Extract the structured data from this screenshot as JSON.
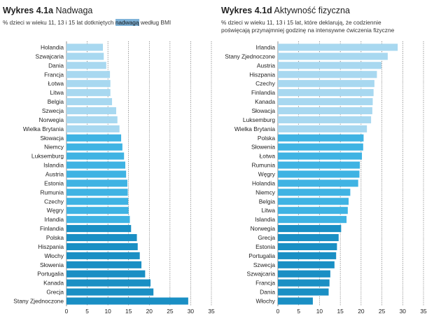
{
  "charts": {
    "left": {
      "title_number": "Wykres 4.1a",
      "title_name": "Nadwaga",
      "subtitle_before": "% dzieci w wieku 11, 13 i 15 lat dotkniętych",
      "subtitle_highlight": "nadwagą",
      "subtitle_after": "według BMI"
    },
    "right": {
      "title_number": "Wykres 4.1d",
      "title_name": "Aktywność fizyczna",
      "subtitle_line1": "% dzieci w wieku 11, 13 i 15 lat, które deklarują, że codziennie",
      "subtitle_line2": "poświęcają przynajmniej godzinę na intensywne ćwiczenia fizyczne"
    }
  },
  "colors": {
    "light": "#a8d8f0",
    "medium": "#3fb3e3",
    "dark": "#1a8fc4",
    "grid": "#444444"
  },
  "chart_data": [
    {
      "type": "bar",
      "orientation": "horizontal",
      "title": "Wykres 4.1a Nadwaga",
      "categories": [
        "Holandia",
        "Szwajcaria",
        "Dania",
        "Francja",
        "Łotwa",
        "Litwa",
        "Belgia",
        "Szwecja",
        "Norwegia",
        "Wielka Brytania",
        "Słowacja",
        "Niemcy",
        "Luksemburg",
        "Islandia",
        "Austria",
        "Estonia",
        "Rumunia",
        "Czechy",
        "Węgry",
        "Irlandia",
        "Finlandia",
        "Polska",
        "Hiszpania",
        "Włochy",
        "Słowenia",
        "Portugalia",
        "Kanada",
        "Grecja",
        "Stany Zjednoczone"
      ],
      "values": [
        8.8,
        9.0,
        9.6,
        10.5,
        10.6,
        10.6,
        11.0,
        12.0,
        12.3,
        12.8,
        13.2,
        13.5,
        13.9,
        14.2,
        14.4,
        14.7,
        14.8,
        14.9,
        15.0,
        15.3,
        15.6,
        17.0,
        17.2,
        17.7,
        18.1,
        19.0,
        20.3,
        21.0,
        29.4
      ],
      "groups": [
        "light",
        "light",
        "light",
        "light",
        "light",
        "light",
        "light",
        "light",
        "light",
        "light",
        "medium",
        "medium",
        "medium",
        "medium",
        "medium",
        "medium",
        "medium",
        "medium",
        "medium",
        "medium",
        "dark",
        "dark",
        "dark",
        "dark",
        "dark",
        "dark",
        "dark",
        "dark",
        "dark"
      ],
      "xlim": [
        0,
        35
      ],
      "xticks": [
        0,
        5,
        10,
        15,
        20,
        25,
        30,
        35
      ],
      "grid": true
    },
    {
      "type": "bar",
      "orientation": "horizontal",
      "title": "Wykres 4.1d Aktywność fizyczna",
      "categories": [
        "Irlandia",
        "Stany Zjednoczone",
        "Austria",
        "Hiszpania",
        "Czechy",
        "Finlandia",
        "Kanada",
        "Słowacja",
        "Luksemburg",
        "Wielka Brytania",
        "Polska",
        "Słowenia",
        "Łotwa",
        "Rumunia",
        "Węgry",
        "Holandia",
        "Niemcy",
        "Belgia",
        "Litwa",
        "Islandia",
        "Norwegia",
        "Grecja",
        "Estonia",
        "Portugalia",
        "Szwecja",
        "Szwajcaria",
        "Francja",
        "Dania",
        "Włochy"
      ],
      "values": [
        28.8,
        26.4,
        24.9,
        23.8,
        23.2,
        23.0,
        22.8,
        22.7,
        22.4,
        21.4,
        20.6,
        20.5,
        20.2,
        19.7,
        19.6,
        19.3,
        17.4,
        17.0,
        16.8,
        16.5,
        15.2,
        14.6,
        14.2,
        14.0,
        13.6,
        12.6,
        12.4,
        12.2,
        8.4
      ],
      "groups": [
        "light",
        "light",
        "light",
        "light",
        "light",
        "light",
        "light",
        "light",
        "light",
        "light",
        "medium",
        "medium",
        "medium",
        "medium",
        "medium",
        "medium",
        "medium",
        "medium",
        "medium",
        "medium",
        "dark",
        "dark",
        "dark",
        "dark",
        "dark",
        "dark",
        "dark",
        "dark",
        "dark"
      ],
      "xlim": [
        0,
        35
      ],
      "xticks": [
        0,
        5,
        10,
        15,
        20,
        25,
        30,
        35
      ],
      "grid": true
    }
  ]
}
